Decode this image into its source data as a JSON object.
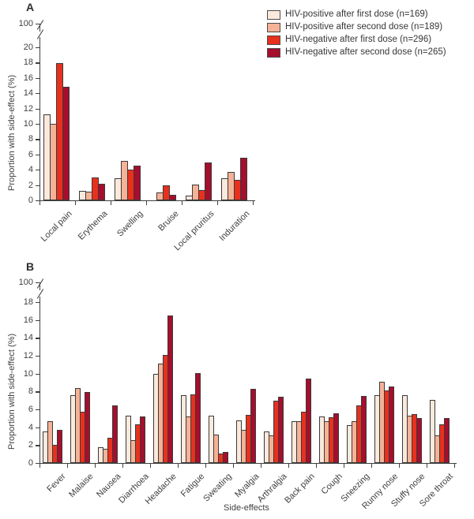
{
  "panels": {
    "a": {
      "letter": "A",
      "ylabel": "Proportion with side-effect (%)"
    },
    "b": {
      "letter": "B",
      "ylabel": "Proportion with side-effect (%)",
      "xlabel": "Side-effects"
    }
  },
  "colors": {
    "series1": "#fbe9dc",
    "series2": "#f5b296",
    "series3": "#e8311d",
    "series4": "#a60e2d",
    "axis": "#3f3f3f"
  },
  "legend": {
    "items": [
      {
        "label": "HIV-positive after first dose (n=169)",
        "color": "#fbe9dc"
      },
      {
        "label": "HIV-positive after second dose (n=189)",
        "color": "#f5b296"
      },
      {
        "label": "HIV-negative after first dose (n=296)",
        "color": "#e8311d"
      },
      {
        "label": "HIV-negative after second dose (n=265)",
        "color": "#a60e2d"
      }
    ]
  },
  "chart_data": [
    {
      "type": "bar",
      "panel": "A",
      "title": "",
      "ylabel": "Proportion with side-effect (%)",
      "xlabel": "",
      "ylim": [
        0,
        20
      ],
      "ytick_step": 2,
      "broken_axis_top_label": "100",
      "grid": false,
      "legend_position": "top-right",
      "categories": [
        "Local pain",
        "Erythema",
        "Swelling",
        "Bruise",
        "Local pruritus",
        "Induration"
      ],
      "series": [
        {
          "name": "HIV-positive after first dose (n=169)",
          "color": "#fbe9dc",
          "values": [
            11.2,
            1.2,
            2.9,
            0,
            0.6,
            2.9
          ]
        },
        {
          "name": "HIV-positive after second dose (n=189)",
          "color": "#f5b296",
          "values": [
            10.0,
            1.1,
            5.2,
            1.0,
            2.1,
            3.7
          ]
        },
        {
          "name": "HIV-negative after first dose (n=296)",
          "color": "#e8311d",
          "values": [
            17.9,
            3.0,
            4.0,
            2.0,
            1.3,
            2.7
          ]
        },
        {
          "name": "HIV-negative after second dose (n=265)",
          "color": "#a60e2d",
          "values": [
            14.8,
            2.2,
            4.5,
            0.7,
            5.0,
            5.6
          ]
        }
      ]
    },
    {
      "type": "bar",
      "panel": "B",
      "title": "",
      "ylabel": "Proportion with side-effect (%)",
      "xlabel": "Side-effects",
      "ylim": [
        0,
        18
      ],
      "ytick_step": 2,
      "broken_axis_top_label": "100",
      "grid": false,
      "legend_position": "none",
      "categories": [
        "Fever",
        "Malaise",
        "Nausea",
        "Diarrhoea",
        "Headache",
        "Fatigue",
        "Sweating",
        "Myalgia",
        "Arthralgia",
        "Back pain",
        "Cough",
        "Sneezing",
        "Runny nose",
        "Stuffy nose",
        "Sore throat"
      ],
      "series": [
        {
          "name": "HIV-positive after first dose (n=169)",
          "color": "#fbe9dc",
          "values": [
            3.5,
            7.6,
            1.8,
            5.3,
            10.0,
            7.6,
            5.3,
            4.8,
            3.5,
            4.7,
            5.2,
            4.2,
            7.6,
            7.6,
            7.1
          ]
        },
        {
          "name": "HIV-positive after second dose (n=189)",
          "color": "#f5b296",
          "values": [
            4.7,
            8.4,
            1.6,
            2.6,
            11.1,
            5.2,
            3.2,
            3.7,
            3.1,
            4.7,
            4.7,
            4.7,
            9.1,
            5.3,
            3.1
          ]
        },
        {
          "name": "HIV-negative after first dose (n=296)",
          "color": "#e8311d",
          "values": [
            2.0,
            5.7,
            2.8,
            4.3,
            12.1,
            7.7,
            1.1,
            5.4,
            7.0,
            5.7,
            5.1,
            6.4,
            8.1,
            5.5,
            4.3
          ]
        },
        {
          "name": "HIV-negative after second dose (n=265)",
          "color": "#a60e2d",
          "values": [
            3.7,
            7.9,
            6.4,
            5.2,
            16.5,
            10.1,
            1.2,
            8.3,
            7.4,
            9.4,
            5.6,
            7.5,
            8.6,
            5.0,
            5.0
          ]
        }
      ]
    }
  ]
}
